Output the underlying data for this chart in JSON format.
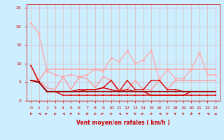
{
  "background_color": "#cceeff",
  "grid_color": "#aaddcc",
  "xlabel": "Vent moyen/en rafales ( km/h )",
  "xlabel_color": "#cc0000",
  "tick_color": "#cc0000",
  "xlim": [
    -0.5,
    23.5
  ],
  "ylim": [
    0,
    26
  ],
  "yticks": [
    0,
    5,
    10,
    15,
    20,
    25
  ],
  "xticks": [
    0,
    1,
    2,
    3,
    4,
    5,
    6,
    7,
    8,
    9,
    10,
    11,
    12,
    13,
    14,
    15,
    16,
    17,
    18,
    19,
    20,
    21,
    22,
    23
  ],
  "x": [
    0,
    1,
    2,
    3,
    4,
    5,
    6,
    7,
    8,
    9,
    10,
    11,
    12,
    13,
    14,
    15,
    16,
    17,
    18,
    19,
    20,
    21,
    22,
    23
  ],
  "series": [
    {
      "y": [
        21,
        18,
        8,
        7,
        6.5,
        7,
        6.5,
        7,
        8.5,
        8,
        11.5,
        10.5,
        13.5,
        10,
        11,
        13.5,
        5.5,
        8.5,
        6,
        6,
        8.5,
        13,
        7,
        7
      ],
      "color": "#ffaaaa",
      "linewidth": 1.0,
      "marker": "D",
      "markersize": 2.0,
      "zorder": 2
    },
    {
      "y": [
        9.5,
        5.5,
        8.5,
        8.5,
        8.5,
        8.5,
        8.5,
        8.5,
        8.5,
        8.5,
        8.5,
        8.5,
        8.5,
        8.5,
        8.5,
        8.5,
        8.5,
        8.5,
        8.5,
        8.5,
        8.5,
        8.5,
        8.5,
        8.5
      ],
      "color": "#ff9999",
      "linewidth": 1.0,
      "marker": null,
      "markersize": 0,
      "zorder": 2
    },
    {
      "y": [
        5.5,
        5.5,
        3.5,
        3.0,
        6.5,
        3.0,
        6.5,
        6.0,
        3.5,
        6.5,
        5.5,
        3.0,
        3.0,
        5.5,
        3.0,
        3.0,
        5.5,
        3.0,
        5.5,
        5.5,
        5.5,
        5.5,
        5.5,
        5.5
      ],
      "color": "#ff9999",
      "linewidth": 1.0,
      "marker": null,
      "markersize": 0,
      "zorder": 2
    },
    {
      "y": [
        5.5,
        5.0,
        2.5,
        2.5,
        2.5,
        2.5,
        2.5,
        3.0,
        3.0,
        3.5,
        5.5,
        2.5,
        5.5,
        3.0,
        3.0,
        5.5,
        5.5,
        3.0,
        3.0,
        2.5,
        2.5,
        2.5,
        2.5,
        2.5
      ],
      "color": "#dd0000",
      "linewidth": 1.0,
      "marker": "s",
      "markersize": 1.8,
      "zorder": 3
    },
    {
      "y": [
        5.5,
        5.0,
        2.5,
        2.5,
        2.5,
        2.5,
        3.0,
        3.0,
        3.0,
        3.5,
        3.0,
        2.5,
        3.0,
        2.5,
        2.5,
        1.5,
        1.5,
        1.5,
        1.5,
        1.5,
        2.5,
        2.5,
        2.5,
        2.5
      ],
      "color": "#dd0000",
      "linewidth": 1.0,
      "marker": "s",
      "markersize": 1.8,
      "zorder": 3
    },
    {
      "y": [
        5.5,
        5.0,
        2.5,
        2.5,
        2.5,
        2.5,
        2.5,
        2.5,
        2.5,
        2.5,
        2.5,
        2.5,
        2.5,
        2.5,
        2.5,
        2.5,
        2.5,
        2.5,
        2.5,
        2.5,
        2.5,
        2.5,
        2.5,
        2.5
      ],
      "color": "#990000",
      "linewidth": 1.2,
      "marker": "s",
      "markersize": 1.8,
      "zorder": 4
    },
    {
      "y": [
        9.5,
        5.0,
        2.5,
        2.5,
        1.5,
        1.5,
        1.5,
        1.5,
        1.5,
        1.5,
        1.5,
        1.5,
        1.5,
        1.5,
        1.5,
        1.5,
        1.5,
        1.5,
        1.5,
        1.5,
        1.5,
        1.5,
        1.5,
        1.5
      ],
      "color": "#dd0000",
      "linewidth": 1.0,
      "marker": "s",
      "markersize": 1.8,
      "zorder": 3
    }
  ],
  "wind_angles": [
    200,
    270,
    90,
    210,
    270,
    315,
    315,
    200,
    210,
    90,
    210,
    270,
    315,
    315,
    90,
    210,
    270,
    315,
    315,
    315,
    200,
    315,
    270,
    135
  ]
}
